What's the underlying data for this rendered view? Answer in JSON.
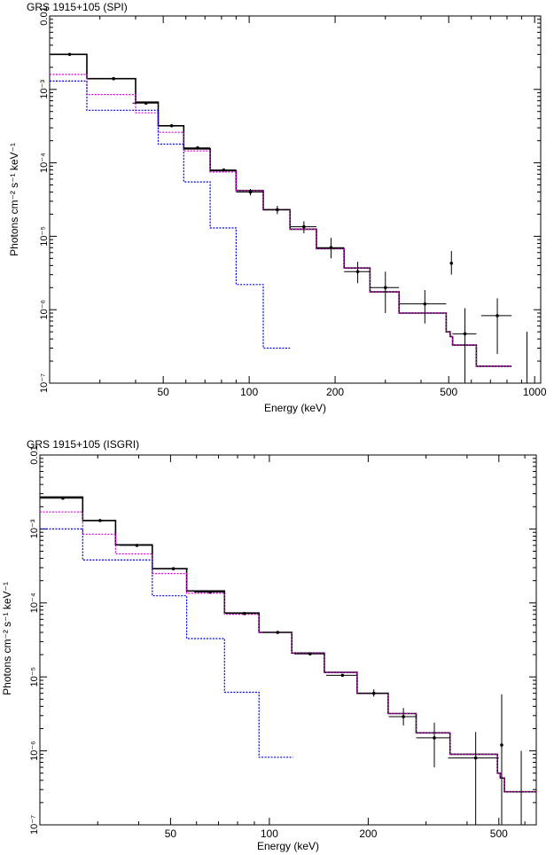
{
  "chart_data": [
    {
      "type": "line",
      "title": "GRS 1915+105 (SPI)",
      "xlabel": "Energy (keV)",
      "ylabel": "Photons cm⁻² s⁻¹ keV⁻¹",
      "xscale": "log",
      "yscale": "log",
      "xlim": [
        20,
        1050
      ],
      "ylim": [
        1e-07,
        0.01
      ],
      "x_ticks": [
        {
          "v": 50,
          "label": "50"
        },
        {
          "v": 100,
          "label": "100"
        },
        {
          "v": 200,
          "label": "200"
        },
        {
          "v": 500,
          "label": "500"
        },
        {
          "v": 1000,
          "label": "1000"
        }
      ],
      "y_ticks": [
        {
          "v": 0.01,
          "label": "0.01"
        },
        {
          "v": 0.001,
          "label": "10⁻³"
        },
        {
          "v": 0.0001,
          "label": "10⁻⁴"
        },
        {
          "v": 1e-05,
          "label": "10⁻⁵"
        },
        {
          "v": 1e-06,
          "label": "10⁻⁶"
        },
        {
          "v": 1e-07,
          "label": "10⁻⁷"
        }
      ],
      "data_points": [
        {
          "x": 23.5,
          "xerr": [
            3.5,
            3.5
          ],
          "y": 0.003
        },
        {
          "x": 33.5,
          "xerr": [
            3.5,
            3.5
          ],
          "y": 0.0014
        },
        {
          "x": 43.5,
          "xerr": [
            4.5,
            4.5
          ],
          "y": 0.00065
        },
        {
          "x": 53.5,
          "xerr": [
            5.5,
            5.5
          ],
          "y": 0.00032
        },
        {
          "x": 66,
          "xerr": [
            7,
            7
          ],
          "y": 0.00016
        },
        {
          "x": 81.5,
          "xerr": [
            8.5,
            8.5
          ],
          "y": 8e-05
        },
        {
          "x": 101,
          "xerr": [
            11,
            11
          ],
          "y": 4e-05,
          "yerr": [
            4e-06,
            4e-06
          ]
        },
        {
          "x": 125.5,
          "xerr": [
            13.5,
            13.5
          ],
          "y": 2.3e-05,
          "yerr": [
            3e-06,
            3e-06
          ]
        },
        {
          "x": 155.5,
          "xerr": [
            16.5,
            16.5
          ],
          "y": 1.35e-05,
          "yerr": [
            2.5e-06,
            2.5e-06
          ]
        },
        {
          "x": 193.5,
          "xerr": [
            21.5,
            21.5
          ],
          "y": 7e-06,
          "yerr": [
            2e-06,
            2.5e-06
          ]
        },
        {
          "x": 240,
          "xerr": [
            25,
            25
          ],
          "y": 3.3e-06,
          "yerr": [
            1e-06,
            1.2e-06
          ]
        },
        {
          "x": 300,
          "xerr": [
            35,
            35
          ],
          "y": 2e-06,
          "yerr": [
            1.1e-06,
            1.3e-06
          ]
        },
        {
          "x": 412.5,
          "xerr": [
            77.5,
            77.5
          ],
          "y": 1.2e-06,
          "yerr": [
            5.5e-07,
            6.5e-07
          ]
        },
        {
          "x": 511,
          "xerr": [
            3,
            3
          ],
          "y": 4.3e-06,
          "yerr": [
            1.3e-06,
            2e-06
          ]
        },
        {
          "x": 570,
          "xerr": [
            55,
            55
          ],
          "y": 4.7e-07,
          "yerr": [
            3.7e-07,
            5.8e-07
          ]
        },
        {
          "x": 740,
          "xerr": [
            90,
            90
          ],
          "y": 8.3e-07,
          "yerr": [
            5.8e-07,
            6e-07
          ]
        },
        {
          "x": 940,
          "xerr": [
            0,
            0
          ],
          "y": 1e-07,
          "yerr": [
            0,
            4e-07
          ]
        }
      ],
      "series": [
        {
          "key": "total",
          "color": "#000000",
          "style": "solid",
          "edges": [
            20,
            27,
            40,
            48,
            59,
            73,
            90,
            112,
            139,
            172,
            215,
            265,
            335,
            490,
            506,
            516,
            625,
            830
          ],
          "values": [
            0.003,
            0.0014,
            0.00067,
            0.00032,
            0.000155,
            7.8e-05,
            4.2e-05,
            2.3e-05,
            1.25e-05,
            6.8e-06,
            3.7e-06,
            1.75e-06,
            9e-07,
            5e-07,
            4.3e-07,
            3.3e-07,
            1.7e-07
          ]
        },
        {
          "key": "magenta-component",
          "color": "#dd00dd",
          "style": "dotted",
          "edges": [
            20,
            27,
            40,
            48,
            59,
            73,
            90,
            112,
            139,
            172,
            215,
            265,
            335,
            490,
            506,
            516,
            625,
            830
          ],
          "values": [
            0.0016,
            0.00085,
            0.00048,
            0.00026,
            0.000145,
            7.5e-05,
            4.2e-05,
            2.3e-05,
            1.25e-05,
            6.8e-06,
            3.7e-06,
            1.75e-06,
            9e-07,
            5e-07,
            4.3e-07,
            3.3e-07,
            1.7e-07
          ]
        },
        {
          "key": "blue-component",
          "color": "#0000dd",
          "style": "dotted",
          "edges": [
            20,
            27,
            48,
            59,
            73,
            90,
            112,
            139
          ],
          "values": [
            0.0013,
            0.00052,
            0.00018,
            5.5e-05,
            1.3e-05,
            2.2e-06,
            3e-07
          ]
        }
      ]
    },
    {
      "type": "line",
      "title": "GRS 1915+105 (ISGRI)",
      "xlabel": "Energy (keV)",
      "ylabel": "Photons cm⁻² s⁻¹ keV⁻¹",
      "xscale": "log",
      "yscale": "log",
      "xlim": [
        20,
        650
      ],
      "ylim": [
        1e-07,
        0.01
      ],
      "x_ticks": [
        {
          "v": 50,
          "label": "50"
        },
        {
          "v": 100,
          "label": "100"
        },
        {
          "v": 200,
          "label": "200"
        },
        {
          "v": 500,
          "label": "500"
        }
      ],
      "y_ticks": [
        {
          "v": 0.01,
          "label": "0.01"
        },
        {
          "v": 0.001,
          "label": "10⁻³"
        },
        {
          "v": 0.0001,
          "label": "10⁻⁴"
        },
        {
          "v": 1e-05,
          "label": "10⁻⁵"
        },
        {
          "v": 1e-06,
          "label": "10⁻⁶"
        },
        {
          "v": 1e-07,
          "label": "10⁻⁷"
        }
      ],
      "data_points": [
        {
          "x": 23.5,
          "xerr": [
            3.5,
            3.5
          ],
          "y": 0.0026
        },
        {
          "x": 30.5,
          "xerr": [
            3.5,
            3.5
          ],
          "y": 0.0013
        },
        {
          "x": 39.5,
          "xerr": [
            4.5,
            4.5
          ],
          "y": 0.0006
        },
        {
          "x": 51,
          "xerr": [
            5.5,
            5.5
          ],
          "y": 0.00029
        },
        {
          "x": 66,
          "xerr": [
            7,
            7
          ],
          "y": 0.00014
        },
        {
          "x": 84,
          "xerr": [
            9,
            9
          ],
          "y": 7.2e-05
        },
        {
          "x": 106,
          "xerr": [
            11,
            11
          ],
          "y": 4e-05
        },
        {
          "x": 133,
          "xerr": [
            14,
            14
          ],
          "y": 2.05e-05
        },
        {
          "x": 167,
          "xerr": [
            18,
            18
          ],
          "y": 1.05e-05
        },
        {
          "x": 208,
          "xerr": [
            22,
            22
          ],
          "y": 6e-06,
          "yerr": [
            6e-07,
            8e-07
          ]
        },
        {
          "x": 256,
          "xerr": [
            25,
            25
          ],
          "y": 2.9e-06,
          "yerr": [
            7e-07,
            9e-07
          ]
        },
        {
          "x": 318,
          "xerr": [
            38,
            38
          ],
          "y": 1.5e-06,
          "yerr": [
            9e-07,
            9e-07
          ]
        },
        {
          "x": 425,
          "xerr": [
            75,
            75
          ],
          "y": 8e-07,
          "yerr": [
            7e-07,
            1e-06
          ]
        },
        {
          "x": 510,
          "xerr": [
            4,
            4
          ],
          "y": 1.2e-06,
          "yerr": [
            1.1e-06,
            4.6e-06
          ]
        },
        {
          "x": 585,
          "xerr": [
            0,
            0
          ],
          "y": 1e-07,
          "yerr": [
            0,
            9e-07
          ]
        }
      ],
      "series": [
        {
          "key": "total",
          "color": "#000000",
          "style": "solid",
          "edges": [
            20,
            27,
            34,
            44,
            56,
            73,
            93,
            117,
            147,
            185,
            230,
            280,
            355,
            495,
            505,
            520,
            650
          ],
          "values": [
            0.0027,
            0.0013,
            0.00061,
            0.00029,
            0.000145,
            7.3e-05,
            4e-05,
            2.1e-05,
            1.15e-05,
            6e-06,
            3.2e-06,
            1.75e-06,
            9e-07,
            5e-07,
            4.3e-07,
            2.8e-07
          ]
        },
        {
          "key": "magenta-component",
          "color": "#dd00dd",
          "style": "dotted",
          "edges": [
            20,
            27,
            34,
            44,
            56,
            73,
            93,
            117,
            147,
            185,
            230,
            280,
            355,
            495,
            505,
            520,
            650
          ],
          "values": [
            0.0017,
            0.00085,
            0.00046,
            0.00025,
            0.000135,
            7e-05,
            4e-05,
            2.1e-05,
            1.15e-05,
            6e-06,
            3.2e-06,
            1.75e-06,
            9e-07,
            5e-07,
            4.3e-07,
            2.8e-07
          ]
        },
        {
          "key": "blue-component",
          "color": "#0000dd",
          "style": "dotted",
          "edges": [
            20,
            27,
            44,
            56,
            73,
            93,
            118
          ],
          "values": [
            0.001,
            0.00038,
            0.000125,
            3.3e-05,
            6.2e-06,
            8.2e-07
          ]
        }
      ]
    }
  ]
}
